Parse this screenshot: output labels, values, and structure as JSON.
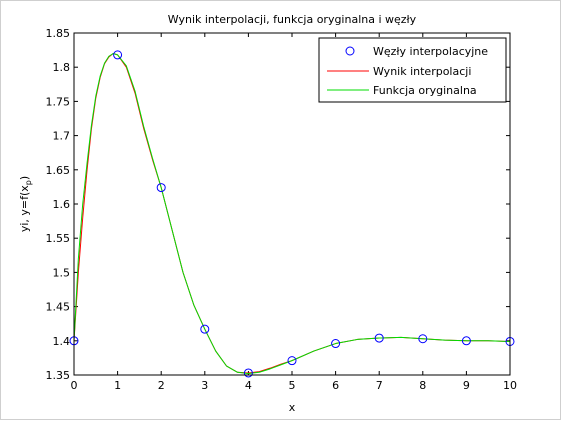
{
  "chart_data": {
    "type": "line",
    "title": "Wynik interpolacji, funkcja oryginalna i węzły",
    "xlabel": "x",
    "ylabel_main": "yi, y=f(x",
    "ylabel_sub": "p",
    "ylabel_end": ")",
    "xlim": [
      0,
      10
    ],
    "ylim": [
      1.35,
      1.85
    ],
    "x_ticks": [
      "0",
      "1",
      "2",
      "3",
      "4",
      "5",
      "6",
      "7",
      "8",
      "9",
      "10"
    ],
    "y_ticks": [
      "1.35",
      "1.4",
      "1.45",
      "1.5",
      "1.55",
      "1.6",
      "1.65",
      "1.7",
      "1.75",
      "1.8",
      "1.85"
    ],
    "legend_position": "top-right",
    "grid": false,
    "series": [
      {
        "name": "Węzły interpolacyjne",
        "kind": "markers",
        "color": "#0000ff",
        "x": [
          0,
          1,
          2,
          3,
          4,
          5,
          6,
          7,
          8,
          9,
          10
        ],
        "y": [
          1.4,
          1.818,
          1.624,
          1.417,
          1.353,
          1.371,
          1.396,
          1.404,
          1.403,
          1.4,
          1.399
        ]
      },
      {
        "name": "Wynik interpolacji",
        "kind": "line",
        "color": "#ff0000",
        "x": [
          0,
          0.1,
          0.2,
          0.3,
          0.4,
          0.5,
          0.6,
          0.7,
          0.8,
          0.9,
          1,
          1.2,
          1.4,
          1.6,
          1.8,
          2,
          2.25,
          2.5,
          2.75,
          3,
          3.25,
          3.5,
          3.75,
          4,
          4.25,
          4.5,
          4.75,
          5,
          5.5,
          6,
          6.5,
          7,
          7.5,
          8,
          8.5,
          9,
          9.5,
          10
        ],
        "y": [
          1.4,
          1.5,
          1.58,
          1.65,
          1.71,
          1.755,
          1.785,
          1.805,
          1.815,
          1.82,
          1.818,
          1.8,
          1.762,
          1.71,
          1.665,
          1.624,
          1.562,
          1.5,
          1.452,
          1.417,
          1.385,
          1.363,
          1.354,
          1.353,
          1.355,
          1.36,
          1.366,
          1.371,
          1.385,
          1.396,
          1.402,
          1.404,
          1.405,
          1.403,
          1.401,
          1.4,
          1.4,
          1.399
        ]
      },
      {
        "name": "Funkcja oryginalna",
        "kind": "line",
        "color": "#00dd00",
        "x": [
          0,
          0.1,
          0.2,
          0.3,
          0.4,
          0.5,
          0.6,
          0.7,
          0.8,
          0.9,
          1,
          1.2,
          1.4,
          1.6,
          1.8,
          2,
          2.25,
          2.5,
          2.75,
          3,
          3.25,
          3.5,
          3.75,
          4,
          4.25,
          4.5,
          4.75,
          5,
          5.5,
          6,
          6.5,
          7,
          7.5,
          8,
          8.5,
          9,
          9.5,
          10
        ],
        "y": [
          1.4,
          1.52,
          1.6,
          1.66,
          1.715,
          1.758,
          1.787,
          1.806,
          1.816,
          1.82,
          1.818,
          1.802,
          1.765,
          1.713,
          1.667,
          1.624,
          1.562,
          1.5,
          1.452,
          1.417,
          1.385,
          1.363,
          1.354,
          1.352,
          1.354,
          1.359,
          1.365,
          1.371,
          1.385,
          1.396,
          1.402,
          1.404,
          1.405,
          1.403,
          1.401,
          1.4,
          1.4,
          1.399
        ]
      }
    ]
  }
}
